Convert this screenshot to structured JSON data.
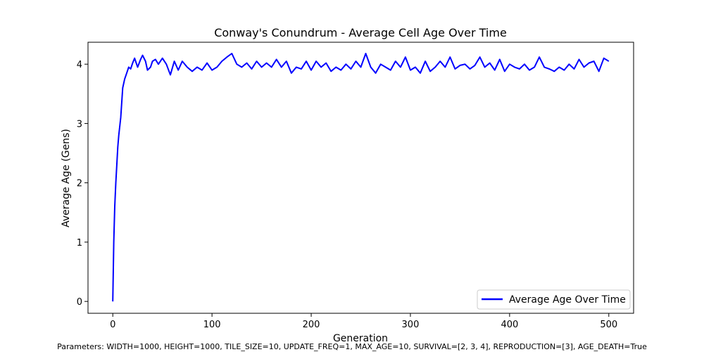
{
  "caption": "Parameters: WIDTH=1000, HEIGHT=1000, TILE_SIZE=10, UPDATE_FREQ=1, MAX_AGE=10, SURVIVAL=[2, 3, 4], REPRODUCTION=[3], AGE_DEATH=True",
  "chart_data": {
    "type": "line",
    "title": "Conway's Conundrum - Average Cell Age Over Time",
    "xlabel": "Generation",
    "ylabel": "Average Age (Gens)",
    "xlim": [
      -25,
      525
    ],
    "ylim": [
      -0.2,
      4.37
    ],
    "xticks": [
      0,
      100,
      200,
      300,
      400,
      500
    ],
    "yticks": [
      0,
      1,
      2,
      3,
      4
    ],
    "grid": false,
    "legend_position": "lower-right",
    "series": [
      {
        "name": "Average Age Over Time",
        "color": "#0000ff",
        "x": [
          0,
          1,
          2,
          3,
          4,
          5,
          6,
          8,
          10,
          12,
          14,
          16,
          18,
          20,
          22,
          25,
          28,
          30,
          33,
          35,
          38,
          40,
          43,
          46,
          50,
          54,
          58,
          62,
          66,
          70,
          75,
          80,
          85,
          90,
          95,
          100,
          105,
          110,
          115,
          120,
          125,
          130,
          135,
          140,
          145,
          150,
          155,
          160,
          165,
          170,
          175,
          180,
          185,
          190,
          195,
          200,
          205,
          210,
          215,
          220,
          225,
          230,
          235,
          240,
          245,
          250,
          255,
          260,
          265,
          270,
          275,
          280,
          285,
          290,
          295,
          300,
          305,
          310,
          315,
          320,
          325,
          330,
          335,
          340,
          345,
          350,
          355,
          360,
          365,
          370,
          375,
          380,
          385,
          390,
          395,
          400,
          405,
          410,
          415,
          420,
          425,
          430,
          435,
          440,
          445,
          450,
          455,
          460,
          465,
          470,
          475,
          480,
          485,
          490,
          495,
          500
        ],
        "values": [
          0.0,
          1.0,
          1.6,
          2.0,
          2.3,
          2.6,
          2.8,
          3.1,
          3.6,
          3.75,
          3.85,
          3.95,
          3.92,
          4.02,
          4.1,
          3.95,
          4.08,
          4.15,
          4.05,
          3.9,
          3.95,
          4.05,
          4.08,
          4.0,
          4.1,
          4.0,
          3.82,
          4.05,
          3.9,
          4.05,
          3.95,
          3.88,
          3.95,
          3.9,
          4.02,
          3.9,
          3.95,
          4.05,
          4.12,
          4.18,
          4.0,
          3.95,
          4.02,
          3.92,
          4.05,
          3.95,
          4.02,
          3.95,
          4.08,
          3.95,
          4.05,
          3.85,
          3.95,
          3.92,
          4.05,
          3.9,
          4.05,
          3.95,
          4.02,
          3.88,
          3.95,
          3.9,
          4.0,
          3.92,
          4.05,
          3.95,
          4.18,
          3.95,
          3.85,
          4.0,
          3.95,
          3.9,
          4.05,
          3.95,
          4.12,
          3.9,
          3.95,
          3.85,
          4.05,
          3.88,
          3.95,
          4.05,
          3.95,
          4.12,
          3.92,
          3.98,
          4.0,
          3.92,
          3.98,
          4.12,
          3.95,
          4.02,
          3.9,
          4.08,
          3.88,
          4.0,
          3.95,
          3.92,
          4.0,
          3.9,
          3.95,
          4.12,
          3.95,
          3.92,
          3.88,
          3.95,
          3.9,
          4.0,
          3.92,
          4.08,
          3.95,
          4.02,
          4.05,
          3.88,
          4.1,
          4.05
        ]
      }
    ]
  }
}
